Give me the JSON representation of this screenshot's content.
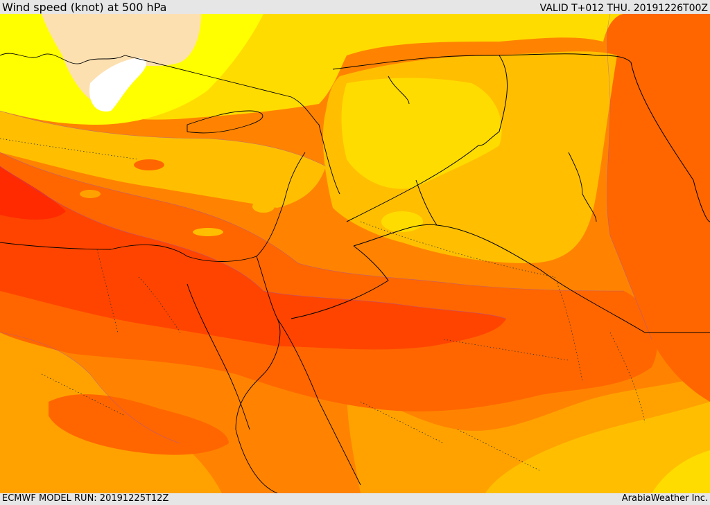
{
  "header": {
    "title": "Wind speed (knot) at 500 hPa",
    "valid_label": "VALID T+012 THU. 20191226T00Z"
  },
  "footer": {
    "model_run": "ECMWF MODEL RUN: 20191225T12Z",
    "credit": "ArabiaWeather Inc."
  },
  "colors": {
    "band_white": "#ffffff",
    "band_peach": "#fde0b0",
    "band_yellow": "#ffff00",
    "band_gold": "#ffdc00",
    "band_amber": "#ffbf00",
    "band_orange_light": "#ffa200",
    "band_orange": "#ff8300",
    "band_orange_dark": "#ff6600",
    "band_red": "#ff4400",
    "band_red_deep": "#ff2a00"
  }
}
